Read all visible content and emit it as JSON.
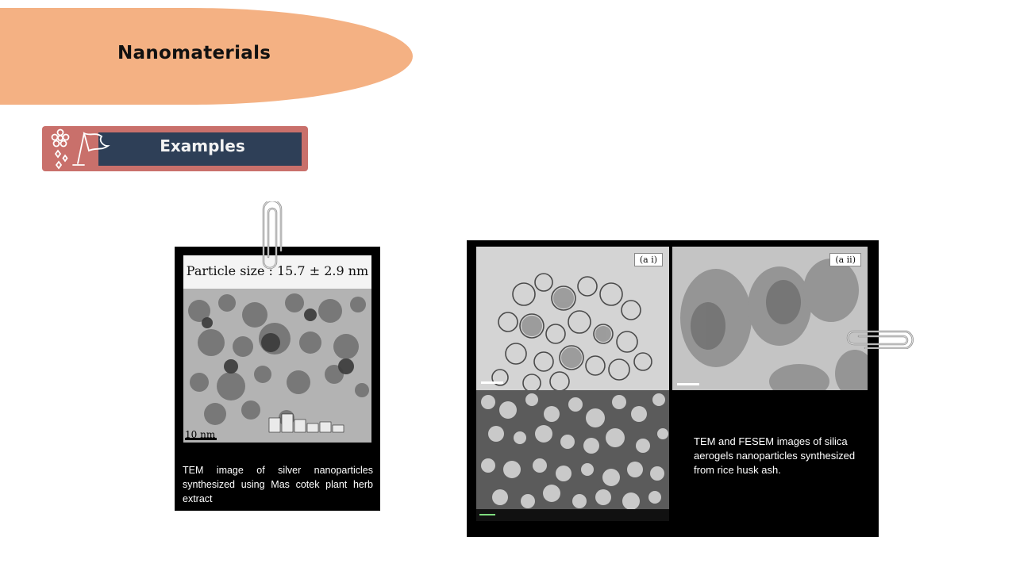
{
  "slide": {
    "title": "Nanomaterials",
    "section_label": "Examples"
  },
  "left_figure": {
    "image_heading": "Particle size : 15.7 ± 2.9 nm",
    "scale_label": "10 nm",
    "caption": "TEM image of silver nanoparticles synthesized using Mas cotek plant herb extract"
  },
  "right_figure": {
    "panel_a1_label": "(a i)",
    "panel_a2_label": "(a ii)",
    "caption": "TEM and FESEM images of silica aerogels nanoparticles synthesized from rice husk ash."
  },
  "colors": {
    "title_blob": "#f4b183",
    "banner_outer": "#c9706b",
    "banner_inner": "#2e3f57"
  }
}
